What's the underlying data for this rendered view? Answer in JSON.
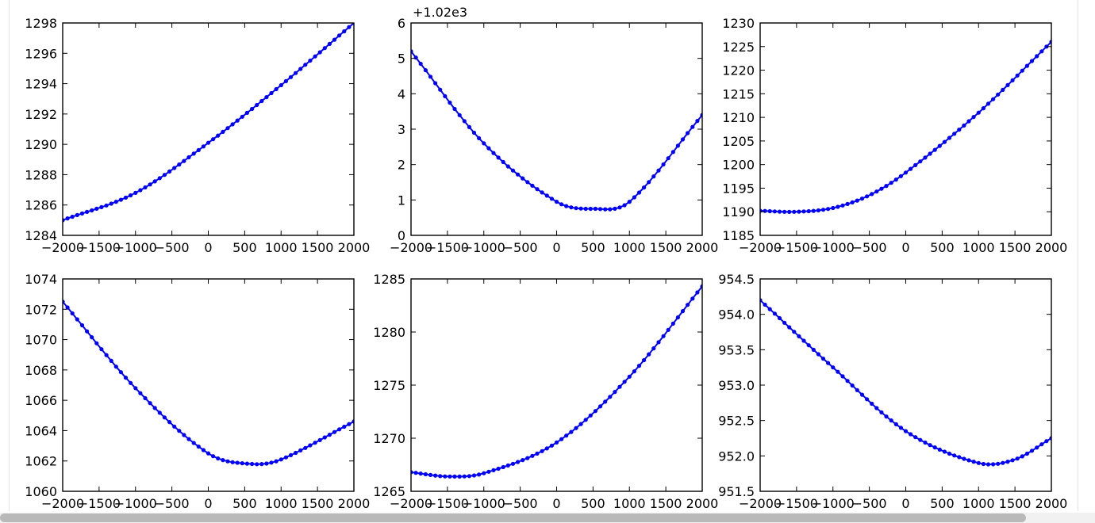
{
  "colors": {
    "line": "#0000ff",
    "axes": "#000000",
    "scrollbar": "#b9b9b9"
  },
  "chart_data": [
    {
      "type": "line",
      "title": "",
      "xlabel": "",
      "ylabel": "",
      "offset_text": "",
      "xlim": [
        -2000,
        2000
      ],
      "ylim": [
        1284,
        1298
      ],
      "xticks": [
        -2000,
        -1500,
        -1000,
        -500,
        0,
        500,
        1000,
        1500,
        2000
      ],
      "xtick_labels": [
        "−2000",
        "−1500",
        "−1000",
        "−500",
        "0",
        "500",
        "1000",
        "1500",
        "2000"
      ],
      "yticks": [
        1284,
        1286,
        1288,
        1290,
        1292,
        1294,
        1296,
        1298
      ],
      "ytick_labels": [
        "1284",
        "1286",
        "1288",
        "1290",
        "1292",
        "1294",
        "1296",
        "1298"
      ],
      "series": [
        {
          "x": [
            -2000,
            -1000,
            0,
            1000,
            2000
          ],
          "y": [
            1285.0,
            1286.8,
            1290.1,
            1293.9,
            1298.0
          ],
          "marker": "o"
        }
      ]
    },
    {
      "type": "line",
      "title": "",
      "xlabel": "",
      "ylabel": "",
      "offset_text": "+1.02e3",
      "xlim": [
        -2000,
        2000
      ],
      "ylim": [
        0,
        6
      ],
      "xticks": [
        -2000,
        -1500,
        -1000,
        -500,
        0,
        500,
        1000,
        1500,
        2000
      ],
      "xtick_labels": [
        "−2000",
        "−1500",
        "−1000",
        "−500",
        "0",
        "500",
        "1000",
        "1500",
        "2000"
      ],
      "yticks": [
        0,
        1,
        2,
        3,
        4,
        5,
        6
      ],
      "ytick_labels": [
        "0",
        "1",
        "2",
        "3",
        "4",
        "5",
        "6"
      ],
      "series": [
        {
          "x": [
            -2000,
            -1000,
            0,
            500,
            1000,
            2000
          ],
          "y": [
            5.2,
            2.6,
            0.95,
            0.75,
            0.95,
            3.4
          ],
          "marker": "o"
        }
      ]
    },
    {
      "type": "line",
      "title": "",
      "xlabel": "",
      "ylabel": "",
      "offset_text": "",
      "xlim": [
        -2000,
        2000
      ],
      "ylim": [
        1185,
        1230
      ],
      "xticks": [
        -2000,
        -1500,
        -1000,
        -500,
        0,
        500,
        1000,
        1500,
        2000
      ],
      "xtick_labels": [
        "−2000",
        "−1500",
        "−1000",
        "−500",
        "0",
        "500",
        "1000",
        "1500",
        "2000"
      ],
      "yticks": [
        1185,
        1190,
        1195,
        1200,
        1205,
        1210,
        1215,
        1220,
        1225,
        1230
      ],
      "ytick_labels": [
        "1185",
        "1190",
        "1195",
        "1200",
        "1205",
        "1210",
        "1215",
        "1220",
        "1225",
        "1230"
      ],
      "series": [
        {
          "x": [
            -2000,
            -1500,
            -1000,
            -500,
            0,
            1000,
            2000
          ],
          "y": [
            1190.2,
            1190.0,
            1190.8,
            1193.5,
            1198.3,
            1211.0,
            1226.0
          ],
          "marker": "o"
        }
      ]
    },
    {
      "type": "line",
      "title": "",
      "xlabel": "",
      "ylabel": "",
      "offset_text": "",
      "xlim": [
        -2000,
        2000
      ],
      "ylim": [
        1060,
        1074
      ],
      "xticks": [
        -2000,
        -1500,
        -1000,
        -500,
        0,
        500,
        1000,
        1500,
        2000
      ],
      "xtick_labels": [
        "−2000",
        "−1500",
        "−1000",
        "−500",
        "0",
        "500",
        "1000",
        "1500",
        "2000"
      ],
      "yticks": [
        1060,
        1062,
        1064,
        1066,
        1068,
        1070,
        1072,
        1074
      ],
      "ytick_labels": [
        "1060",
        "1062",
        "1064",
        "1066",
        "1068",
        "1070",
        "1072",
        "1074"
      ],
      "series": [
        {
          "x": [
            -2000,
            -1000,
            0,
            600,
            1000,
            2000
          ],
          "y": [
            1072.5,
            1066.8,
            1062.5,
            1061.8,
            1062.1,
            1064.6
          ],
          "marker": "o"
        }
      ]
    },
    {
      "type": "line",
      "title": "",
      "xlabel": "",
      "ylabel": "",
      "offset_text": "",
      "xlim": [
        -2000,
        2000
      ],
      "ylim": [
        1265,
        1285
      ],
      "xticks": [
        -2000,
        -1500,
        -1000,
        -500,
        0,
        500,
        1000,
        1500,
        2000
      ],
      "xtick_labels": [
        "−2000",
        "−1500",
        "−1000",
        "−500",
        "0",
        "500",
        "1000",
        "1500",
        "2000"
      ],
      "yticks": [
        1265,
        1270,
        1275,
        1280,
        1285
      ],
      "ytick_labels": [
        "1265",
        "1270",
        "1275",
        "1280",
        "1285"
      ],
      "series": [
        {
          "x": [
            -2000,
            -1500,
            -1000,
            0,
            1000,
            2000
          ],
          "y": [
            1266.8,
            1266.4,
            1266.7,
            1269.6,
            1275.8,
            1284.3
          ],
          "marker": "o"
        }
      ]
    },
    {
      "type": "line",
      "title": "",
      "xlabel": "",
      "ylabel": "",
      "offset_text": "",
      "xlim": [
        -2000,
        2000
      ],
      "ylim": [
        951.5,
        954.5
      ],
      "xticks": [
        -2000,
        -1500,
        -1000,
        -500,
        0,
        500,
        1000,
        1500,
        2000
      ],
      "xtick_labels": [
        "−2000",
        "−1500",
        "−1000",
        "−500",
        "0",
        "500",
        "1000",
        "1500",
        "2000"
      ],
      "yticks": [
        951.5,
        952.0,
        952.5,
        953.0,
        953.5,
        954.0,
        954.5
      ],
      "ytick_labels": [
        "951.5",
        "952.0",
        "952.5",
        "953.0",
        "953.5",
        "954.0",
        "954.5"
      ],
      "series": [
        {
          "x": [
            -2000,
            -1000,
            0,
            1000,
            1500,
            2000
          ],
          "y": [
            954.2,
            953.25,
            952.35,
            951.9,
            951.95,
            952.25
          ],
          "marker": "o"
        }
      ]
    }
  ]
}
